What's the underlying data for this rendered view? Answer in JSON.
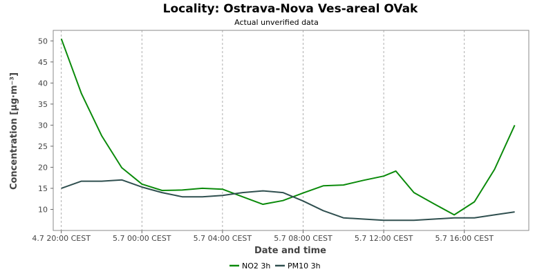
{
  "chart_data": {
    "type": "line",
    "title": "Locality: Ostrava-Nova Ves-areal OVak",
    "subtitle": "Actual unverified data",
    "xlabel": "Date and time",
    "ylabel": "Concentration [µg·m⁻³]",
    "ylim": [
      5,
      52.5
    ],
    "yticks": [
      10,
      15,
      20,
      25,
      30,
      35,
      40,
      45,
      50
    ],
    "xlim": [
      -0.4,
      23.2
    ],
    "xticks": [
      {
        "x": 0,
        "label": "4.7 20:00 CEST"
      },
      {
        "x": 4,
        "label": "5.7 00:00 CEST"
      },
      {
        "x": 8,
        "label": "5.7 04:00 CEST"
      },
      {
        "x": 12,
        "label": "5.7 08:00 CEST"
      },
      {
        "x": 16,
        "label": "5.7 12:00 CEST"
      },
      {
        "x": 20,
        "label": "5.7 16:00 CEST"
      }
    ],
    "grid": true,
    "legend": "bottom",
    "x": [
      0,
      1,
      2,
      3,
      4,
      5,
      6,
      7,
      8,
      9,
      10,
      11,
      12,
      13,
      14,
      15,
      16,
      16.6,
      17.5,
      18.5,
      19.5,
      20.5,
      21.5,
      22.5
    ],
    "series": [
      {
        "name": "NO2 3h",
        "color": "#0a8a0a",
        "values": [
          50.5,
          37.5,
          27.5,
          19.9,
          16.0,
          14.5,
          14.6,
          15.0,
          14.8,
          13.0,
          11.2,
          12.1,
          13.9,
          15.6,
          15.8,
          16.9,
          17.9,
          19.1,
          14.0,
          11.3,
          8.7,
          11.8,
          19.5,
          30.0
        ]
      },
      {
        "name": "PM10 3h",
        "color": "#2f4f4f",
        "values": [
          15.0,
          16.7,
          16.7,
          17.0,
          15.3,
          14.0,
          13.0,
          13.0,
          13.3,
          14.0,
          14.4,
          14.0,
          12.0,
          9.7,
          8.0,
          7.7,
          7.4,
          7.4,
          7.4,
          7.7,
          8.0,
          8.0,
          8.7,
          9.4
        ]
      }
    ]
  }
}
